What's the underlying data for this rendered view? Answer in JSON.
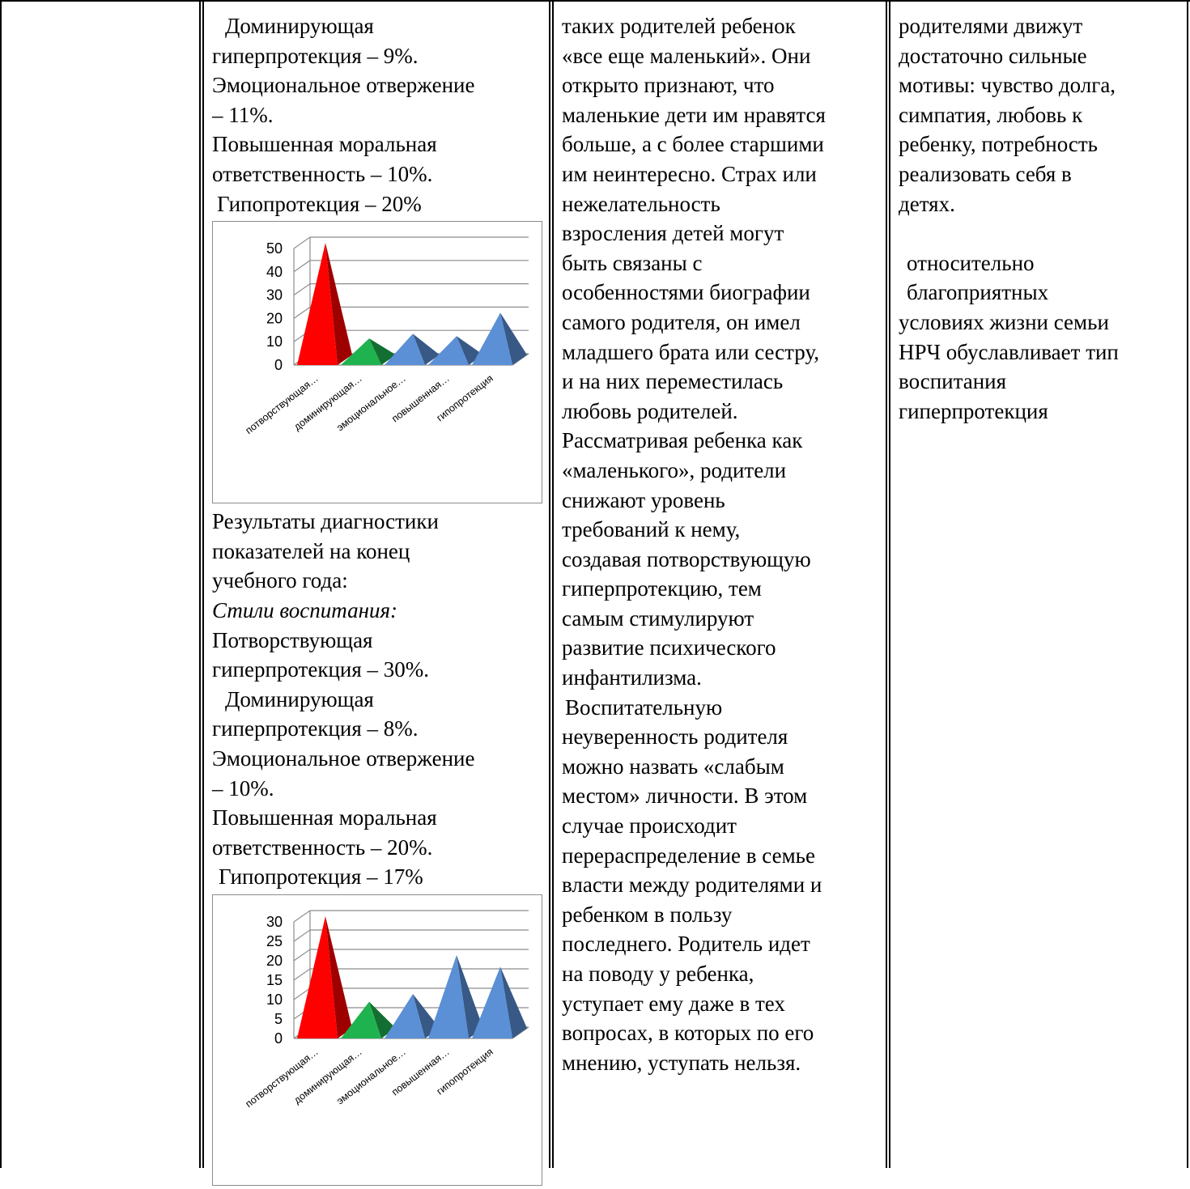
{
  "col2": {
    "block1": [
      "Доминирующая",
      "гиперпротекция  – 9%.",
      "Эмоциональное отвержение",
      "– 11%.",
      "Повышенная моральная",
      "ответственность – 10%.",
      "Гипопротекция – 20%"
    ],
    "block2": [
      "Результаты диагностики",
      "показателей на конец",
      "учебного года:"
    ],
    "styles_heading": "Стили  воспитания:",
    "block3": [
      "Потворствующая",
      "гиперпротекция  – 30%.",
      "Доминирующая",
      "гиперпротекция  – 8%.",
      "Эмоциональное отвержение",
      "– 10%.",
      "Повышенная моральная",
      "ответственность – 20%.",
      "Гипопротекция – 17%"
    ]
  },
  "col3": {
    "lines": [
      "таких родителей ребенок",
      "«все еще маленький». Они",
      "открыто признают, что",
      "маленькие дети им нравятся",
      "больше, а с более старшими",
      "им неинтересно. Страх или",
      "нежелательность",
      "взросления детей могут",
      "быть связаны с",
      "особенностями биографии",
      "самого родителя, он имел",
      "младшего брата или сестру,",
      "и на них переместилась",
      "любовь родителей.",
      "Рассматривая ребенка как",
      "«маленького», родители",
      "снижают уровень",
      "требований к нему,",
      "создавая потворствующую",
      "гиперпротекцию, тем",
      "самым стимулируют",
      "развитие психического",
      "инфантилизма.",
      "Воспитательную",
      "неуверенность родителя",
      "можно назвать «слабым",
      "местом» личности. В этом",
      "случае происходит",
      "перераспределение в семье",
      "власти между родителями и",
      "ребенком в пользу",
      "последнего. Родитель идет",
      "на поводу у ребенка,",
      "уступает ему даже в тех",
      "вопросах, в которых по его",
      "мнению, уступать нельзя."
    ]
  },
  "col4": {
    "block1": [
      "родителями движут",
      "достаточно сильные",
      "мотивы: чувство долга,",
      "симпатия, любовь к",
      "ребенку, потребность",
      "реализовать себя в",
      "детях."
    ],
    "block2": [
      "относительно",
      "благоприятных",
      "условиях жизни семьи",
      "НРЧ обуславливает тип",
      "воспитания",
      "гиперпротекция"
    ]
  },
  "chart_data": [
    {
      "type": "bar",
      "bar_shape": "3d-pyramid",
      "categories": [
        "потворствующая…",
        "доминирующая…",
        "эмоциональное…",
        "повышенная…",
        "гипопротекция"
      ],
      "values": [
        50,
        9,
        11,
        10,
        20
      ],
      "colors": [
        "#ff0000",
        "#1fb34f",
        "#5b8fd6",
        "#5b8fd6",
        "#5b8fd6"
      ],
      "ylim": [
        0,
        50
      ],
      "yticks": [
        "0",
        "10",
        "20",
        "30",
        "40",
        "50"
      ],
      "grid": true
    },
    {
      "type": "bar",
      "bar_shape": "3d-pyramid",
      "categories": [
        "потворствующая…",
        "доминирующая…",
        "эмоциональное…",
        "повышенная…",
        "гипопротекция"
      ],
      "values": [
        30,
        8,
        10,
        20,
        17
      ],
      "colors": [
        "#ff0000",
        "#1fb34f",
        "#5b8fd6",
        "#5b8fd6",
        "#5b8fd6"
      ],
      "ylim": [
        0,
        30
      ],
      "yticks": [
        "0",
        "5",
        "10",
        "15",
        "20",
        "25",
        "30"
      ],
      "grid": true
    }
  ]
}
